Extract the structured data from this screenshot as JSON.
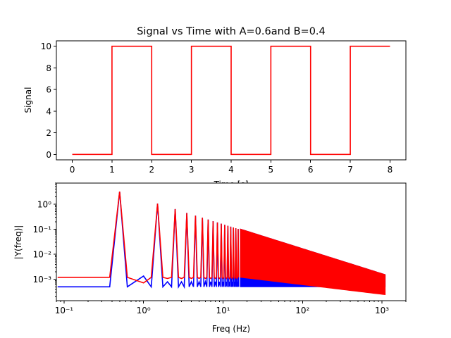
{
  "chart_data": [
    {
      "type": "line",
      "title": "Signal vs Time with A=0.6and B=0.4",
      "xlabel": "Time [s]",
      "ylabel": "Signal",
      "xlim": [
        -0.4,
        8.4
      ],
      "ylim": [
        -0.5,
        10.5
      ],
      "x_ticks": [
        0,
        1,
        2,
        3,
        4,
        5,
        6,
        7,
        8
      ],
      "x_tick_labels": [
        "0",
        "1",
        "2",
        "3",
        "4",
        "5",
        "6",
        "7",
        "8"
      ],
      "y_ticks": [
        0,
        2,
        4,
        6,
        8,
        10
      ],
      "y_tick_labels": [
        "0",
        "2",
        "4",
        "6",
        "8",
        "10"
      ],
      "grid": false,
      "series": [
        {
          "color": "#ff0000",
          "x": [
            0,
            1,
            1,
            2,
            2,
            3,
            3,
            4,
            4,
            5,
            5,
            6,
            6,
            7,
            7,
            8
          ],
          "y": [
            0,
            0,
            10,
            10,
            0,
            0,
            10,
            10,
            0,
            0,
            10,
            10,
            0,
            0,
            10,
            10
          ]
        }
      ]
    },
    {
      "type": "line",
      "title": "",
      "xlabel": "Freq (Hz)",
      "ylabel": "|Y(freq)|",
      "xscale": "log",
      "yscale": "log",
      "xlim": [
        0.08,
        2000
      ],
      "ylim": [
        0.00014,
        7
      ],
      "x_ticks": [
        0.1,
        1,
        10,
        100,
        1000
      ],
      "x_tick_labels": [
        "10⁻¹",
        "10⁰",
        "10¹",
        "10²",
        "10³"
      ],
      "y_ticks": [
        0.001,
        0.01,
        0.1,
        1
      ],
      "y_tick_labels": [
        "10⁻³",
        "10⁻²",
        "10⁻¹",
        "10⁰"
      ],
      "grid": false,
      "series": [
        {
          "color": "#0000ff",
          "peak_freqs": [
            0.5,
            1.5,
            2.5,
            3.5,
            4.5,
            5.5,
            6.5,
            7.5,
            8.5,
            9.5,
            10.5,
            11.5,
            12.5,
            13.5,
            14.5,
            15.5
          ],
          "peak_values": [
            3.2,
            1.06,
            0.64,
            0.45,
            0.35,
            0.29,
            0.245,
            0.21,
            0.187,
            0.167,
            0.15,
            0.138,
            0.127,
            0.118,
            0.11,
            0.103
          ],
          "baseline": 0.0005,
          "envelope_low": 0.0005,
          "envelope_high_at_1000": 0.0011,
          "fmax": 1100
        },
        {
          "color": "#ff0000",
          "peak_freqs": [
            0.5,
            1.5,
            2.5,
            3.5,
            4.5,
            5.5,
            6.5,
            7.5,
            8.5,
            9.5,
            10.5,
            11.5,
            12.5,
            13.5,
            14.5,
            15.5
          ],
          "peak_values": [
            3.2,
            1.06,
            0.64,
            0.45,
            0.35,
            0.29,
            0.245,
            0.21,
            0.187,
            0.167,
            0.15,
            0.138,
            0.127,
            0.118,
            0.11,
            0.103
          ],
          "baseline": 0.0012,
          "envelope_low_at_1000": 0.00025,
          "envelope_high_at_1000": 0.00035,
          "fmax": 1100
        }
      ]
    }
  ]
}
